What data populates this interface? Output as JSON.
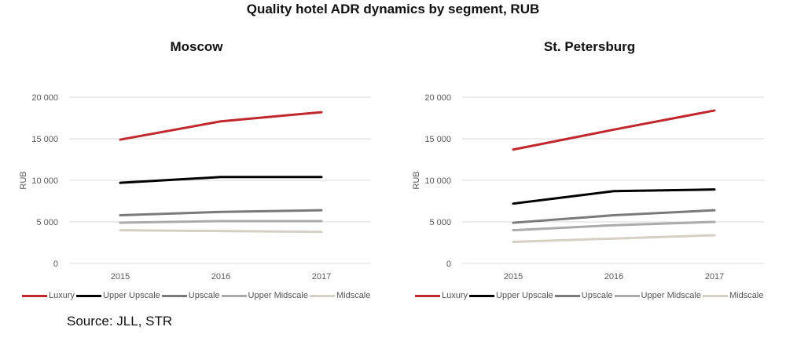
{
  "title": "Quality hotel ADR dynamics by segment, RUB",
  "source": "Source: JLL, STR",
  "colors": {
    "Luxury": "#c0282d",
    "Upper Upscale": "#000000",
    "Upscale": "#7a7a7a",
    "Upper Midscale": "#ababab",
    "Midscale": "#d4d1c4",
    "grid": "#d9d9d9",
    "tick": "#595959"
  },
  "chart_data": [
    {
      "type": "line",
      "title": "Moscow",
      "xlabel": "",
      "ylabel": "RUB",
      "x": [
        "2015",
        "2016",
        "2017"
      ],
      "ylim": [
        0,
        20000
      ],
      "yticks": [
        0,
        5000,
        10000,
        15000,
        20000
      ],
      "ytick_labels": [
        "0",
        "5 000",
        "10 000",
        "15 000",
        "20 000"
      ],
      "grid": true,
      "legend": "bottom",
      "series": [
        {
          "name": "Luxury",
          "values": [
            14900,
            17100,
            18200
          ]
        },
        {
          "name": "Upper Upscale",
          "values": [
            9700,
            10400,
            10400
          ]
        },
        {
          "name": "Upscale",
          "values": [
            5800,
            6200,
            6400
          ]
        },
        {
          "name": "Upper Midscale",
          "values": [
            4900,
            5100,
            5100
          ]
        },
        {
          "name": "Midscale",
          "values": [
            4000,
            3900,
            3800
          ]
        }
      ]
    },
    {
      "type": "line",
      "title": "St. Petersburg",
      "xlabel": "",
      "ylabel": "RUB",
      "x": [
        "2015",
        "2016",
        "2017"
      ],
      "ylim": [
        0,
        20000
      ],
      "yticks": [
        0,
        5000,
        10000,
        15000,
        20000
      ],
      "ytick_labels": [
        "0",
        "5 000",
        "10 000",
        "15 000",
        "20 000"
      ],
      "grid": true,
      "legend": "bottom",
      "series": [
        {
          "name": "Luxury",
          "values": [
            13700,
            16100,
            18400
          ]
        },
        {
          "name": "Upper Upscale",
          "values": [
            7200,
            8700,
            8900
          ]
        },
        {
          "name": "Upscale",
          "values": [
            4900,
            5800,
            6400
          ]
        },
        {
          "name": "Upper Midscale",
          "values": [
            4000,
            4600,
            5000
          ]
        },
        {
          "name": "Midscale",
          "values": [
            2600,
            3000,
            3400
          ]
        }
      ]
    }
  ]
}
